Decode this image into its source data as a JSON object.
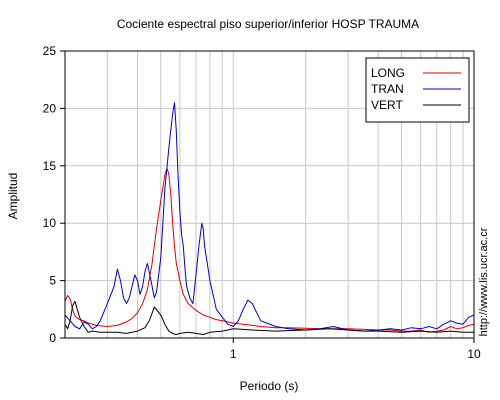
{
  "chart_data": {
    "type": "line",
    "title": "Cociente espectral piso superior/inferior  HOSP TRAUMA",
    "xlabel": "Periodo (s)",
    "ylabel": "Amplitud",
    "xscale": "log",
    "xlim": [
      0.2,
      10
    ],
    "ylim": [
      0,
      25
    ],
    "xticks": [
      {
        "v": 1,
        "label": "1"
      },
      {
        "v": 10,
        "label": "10"
      }
    ],
    "yticks": [
      0,
      5,
      10,
      15,
      20,
      25
    ],
    "grid": true,
    "legend_position": "top-right",
    "colors": {
      "LONG": "#dd0000",
      "TRAN": "#0000cc",
      "VERT": "#000000"
    },
    "series": [
      {
        "name": "LONG",
        "x": [
          0.2,
          0.205,
          0.21,
          0.215,
          0.22,
          0.23,
          0.24,
          0.25,
          0.27,
          0.3,
          0.33,
          0.36,
          0.38,
          0.4,
          0.42,
          0.44,
          0.46,
          0.48,
          0.5,
          0.52,
          0.53,
          0.54,
          0.55,
          0.56,
          0.57,
          0.58,
          0.6,
          0.62,
          0.65,
          0.7,
          0.75,
          0.8,
          0.85,
          0.9,
          0.95,
          1.0,
          1.1,
          1.2,
          1.3,
          1.5,
          1.7,
          2.0,
          2.3,
          2.6,
          3.0,
          3.5,
          4.0,
          4.5,
          5.0,
          5.5,
          6.0,
          6.5,
          7.0,
          7.5,
          8.0,
          8.5,
          9.0,
          9.5,
          10.0
        ],
        "values": [
          3.2,
          3.7,
          3.4,
          2.5,
          1.9,
          1.6,
          1.5,
          1.3,
          1.1,
          1.0,
          1.1,
          1.4,
          1.7,
          2.2,
          3.0,
          4.2,
          6.5,
          9.5,
          12.0,
          14.2,
          14.8,
          14.3,
          12.5,
          10.0,
          8.0,
          6.5,
          5.0,
          3.8,
          3.0,
          2.4,
          2.0,
          1.8,
          1.6,
          1.5,
          1.4,
          1.3,
          1.2,
          1.1,
          1.0,
          0.9,
          0.9,
          0.85,
          0.8,
          0.8,
          0.8,
          0.75,
          0.7,
          0.7,
          0.6,
          0.6,
          0.7,
          0.5,
          0.6,
          0.7,
          1.0,
          0.8,
          0.9,
          1.1,
          1.2
        ]
      },
      {
        "name": "TRAN",
        "x": [
          0.2,
          0.21,
          0.22,
          0.23,
          0.24,
          0.25,
          0.26,
          0.27,
          0.28,
          0.3,
          0.32,
          0.33,
          0.34,
          0.35,
          0.36,
          0.37,
          0.38,
          0.39,
          0.4,
          0.41,
          0.42,
          0.43,
          0.44,
          0.45,
          0.46,
          0.47,
          0.48,
          0.5,
          0.52,
          0.54,
          0.56,
          0.57,
          0.58,
          0.59,
          0.6,
          0.61,
          0.62,
          0.63,
          0.64,
          0.66,
          0.68,
          0.7,
          0.72,
          0.74,
          0.75,
          0.76,
          0.78,
          0.8,
          0.82,
          0.85,
          0.9,
          0.95,
          1.0,
          1.05,
          1.1,
          1.15,
          1.2,
          1.3,
          1.5,
          1.7,
          2.0,
          2.3,
          2.6,
          3.0,
          3.5,
          4.0,
          4.5,
          5.0,
          5.5,
          6.0,
          6.5,
          7.0,
          7.5,
          8.0,
          8.5,
          9.0,
          9.5,
          10.0
        ],
        "values": [
          2.0,
          1.5,
          1.0,
          0.8,
          1.4,
          1.2,
          0.8,
          1.0,
          1.5,
          3.0,
          4.5,
          6.0,
          5.0,
          3.5,
          3.0,
          3.5,
          4.5,
          5.5,
          5.0,
          3.8,
          4.5,
          5.8,
          6.5,
          5.5,
          4.5,
          3.5,
          4.0,
          7.0,
          13.0,
          16.5,
          19.5,
          20.5,
          18.0,
          14.0,
          11.0,
          9.0,
          8.0,
          6.0,
          4.5,
          3.5,
          3.0,
          5.5,
          8.0,
          10.0,
          9.5,
          8.0,
          6.5,
          5.0,
          4.0,
          2.5,
          1.8,
          1.2,
          1.0,
          1.5,
          2.5,
          3.3,
          3.0,
          1.5,
          1.0,
          0.8,
          0.7,
          0.8,
          1.0,
          0.7,
          0.6,
          0.7,
          0.8,
          0.7,
          0.9,
          0.8,
          1.0,
          0.8,
          1.2,
          1.5,
          1.3,
          1.2,
          1.8,
          2.0
        ]
      },
      {
        "name": "VERT",
        "x": [
          0.2,
          0.205,
          0.21,
          0.215,
          0.22,
          0.225,
          0.23,
          0.24,
          0.25,
          0.26,
          0.28,
          0.3,
          0.33,
          0.36,
          0.4,
          0.43,
          0.45,
          0.47,
          0.5,
          0.52,
          0.54,
          0.56,
          0.58,
          0.6,
          0.65,
          0.7,
          0.75,
          0.8,
          0.9,
          1.0,
          1.2,
          1.5,
          2.0,
          2.5,
          3.0,
          3.5,
          4.0,
          5.0,
          6.0,
          7.0,
          8.0,
          9.0,
          10.0
        ],
        "values": [
          1.2,
          0.8,
          1.5,
          2.8,
          3.2,
          2.5,
          1.8,
          1.0,
          0.5,
          0.6,
          0.5,
          0.5,
          0.5,
          0.4,
          0.6,
          0.9,
          1.6,
          2.7,
          2.0,
          1.2,
          0.6,
          0.4,
          0.3,
          0.4,
          0.5,
          0.4,
          0.3,
          0.5,
          0.6,
          0.8,
          0.7,
          0.6,
          0.7,
          0.8,
          0.7,
          0.6,
          0.6,
          0.5,
          0.6,
          0.5,
          0.6,
          0.5,
          0.5
        ]
      }
    ]
  },
  "side_text": "http://www.lis.ucr.ac.cr"
}
